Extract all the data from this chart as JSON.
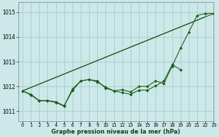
{
  "background_color": "#cce8e8",
  "grid_color": "#aad0d0",
  "line_color": "#1a5c1a",
  "xlabel": "Graphe pression niveau de la mer (hPa)",
  "xlim": [
    -0.5,
    23
  ],
  "ylim": [
    1010.6,
    1015.4
  ],
  "yticks": [
    1011,
    1012,
    1013,
    1014,
    1015
  ],
  "xticks": [
    0,
    1,
    2,
    3,
    4,
    5,
    6,
    7,
    8,
    9,
    10,
    11,
    12,
    13,
    14,
    15,
    16,
    17,
    18,
    19,
    20,
    21,
    22,
    23
  ],
  "series1": [
    1011.82,
    1011.68,
    1011.43,
    1011.43,
    1011.38,
    1011.22,
    1011.83,
    1012.22,
    1012.28,
    1012.22,
    1011.93,
    1011.82,
    1011.87,
    1011.77,
    1012.0,
    1012.0,
    1012.22,
    1012.12,
    1012.82,
    1013.55,
    1014.2,
    1014.87,
    1014.95,
    1014.95
  ],
  "series2": [
    1011.82,
    1011.65,
    1011.42,
    1011.42,
    1011.35,
    1011.2,
    1011.9,
    1012.22,
    1012.28,
    1012.18,
    1011.97,
    1011.82,
    1011.75,
    1011.68,
    1011.85,
    1011.85,
    1012.02,
    1012.22,
    1012.88,
    1012.68,
    null,
    null,
    null,
    null
  ],
  "trend1_x": [
    0,
    22
  ],
  "trend1_y": [
    1011.82,
    1014.82
  ],
  "trend2_x": [
    0,
    23
  ],
  "trend2_y": [
    1011.82,
    1014.95
  ]
}
